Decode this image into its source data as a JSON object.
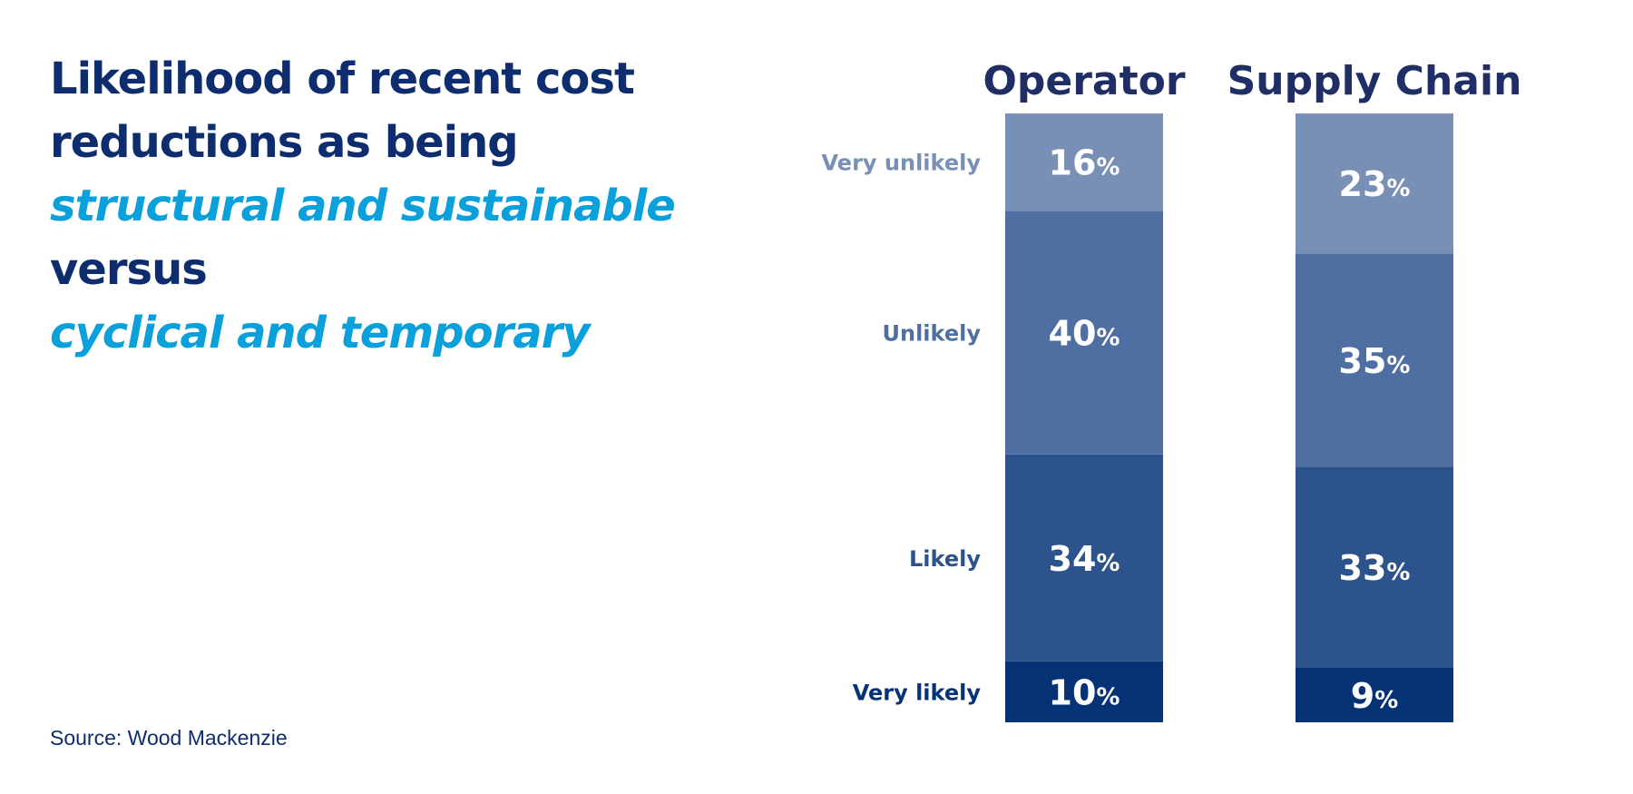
{
  "title": {
    "line1": "Likelihood of recent cost",
    "line2": "reductions as being",
    "line3": "structural and sustainable",
    "line4": "versus",
    "line5": "cyclical and temporary"
  },
  "source": "Source: Wood Mackenzie",
  "chart_data": {
    "type": "bar",
    "stacked": true,
    "categories": [
      "Operator",
      "Supply Chain"
    ],
    "series": [
      {
        "name": "Very likely",
        "values": [
          10,
          9
        ],
        "color": "#063375"
      },
      {
        "name": "Likely",
        "values": [
          34,
          33
        ],
        "color": "#2c538c"
      },
      {
        "name": "Unlikely",
        "values": [
          40,
          35
        ],
        "color": "#4f6fa3"
      },
      {
        "name": "Very unlikely",
        "values": [
          16,
          23
        ],
        "color": "#7890b5"
      }
    ],
    "value_suffix": "%",
    "ylim": [
      0,
      100
    ]
  },
  "colors": {
    "title": "#0d2d6e",
    "highlight": "#0aa0dc",
    "header": "#1f2f66"
  }
}
